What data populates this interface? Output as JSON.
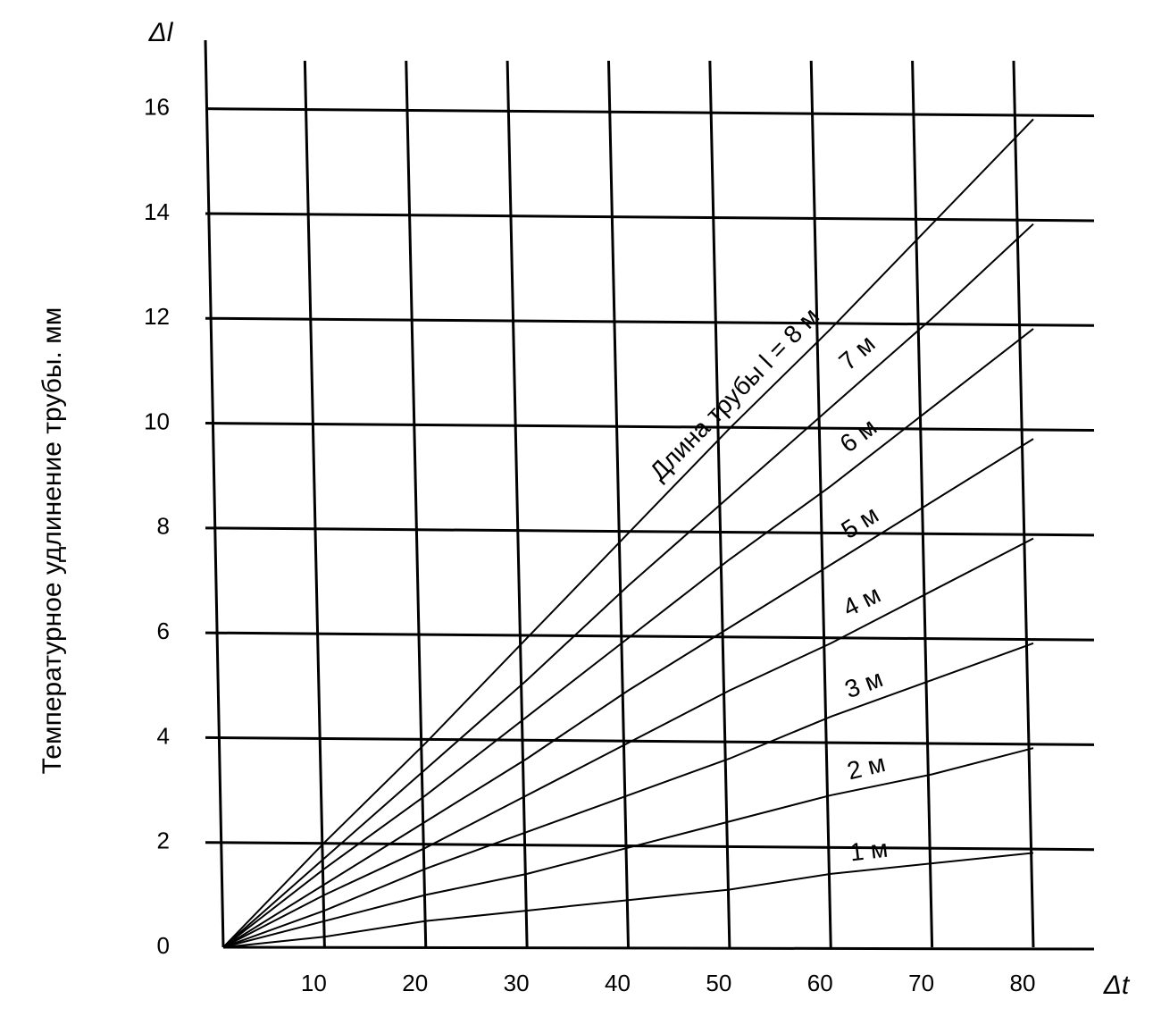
{
  "chart_data": {
    "type": "line",
    "y_label": "Температурное удлинение трубы. мм",
    "y_symbol": "Δl",
    "x_symbol": "Δt",
    "x": [
      0,
      10,
      20,
      30,
      40,
      50,
      60,
      70,
      80
    ],
    "series": [
      {
        "name": "Длина трубы l = 8 м",
        "color": "#000000",
        "values": [
          0,
          2,
          3.9,
          5.9,
          7.9,
          9.9,
          11.8,
          13.8,
          15.8
        ]
      },
      {
        "name": "7 м",
        "color": "#000000",
        "values": [
          0,
          1.7,
          3.4,
          5.1,
          6.9,
          8.6,
          10.3,
          12.0,
          13.8
        ]
      },
      {
        "name": "6 м",
        "color": "#000000",
        "values": [
          0,
          1.5,
          2.9,
          4.4,
          5.9,
          7.4,
          8.8,
          10.3,
          11.8
        ]
      },
      {
        "name": "5 м",
        "color": "#000000",
        "values": [
          0,
          1.2,
          2.4,
          3.6,
          4.9,
          6.1,
          7.3,
          8.5,
          9.7
        ]
      },
      {
        "name": "4 м",
        "color": "#000000",
        "values": [
          0,
          1.0,
          1.9,
          2.9,
          3.9,
          4.9,
          5.8,
          6.8,
          7.8
        ]
      },
      {
        "name": "3 м",
        "color": "#000000",
        "values": [
          0,
          0.7,
          1.5,
          2.2,
          2.9,
          3.6,
          4.4,
          5.1,
          5.8
        ]
      },
      {
        "name": "2 м",
        "color": "#000000",
        "values": [
          0,
          0.5,
          1.0,
          1.4,
          1.9,
          2.4,
          2.9,
          3.3,
          3.8
        ]
      },
      {
        "name": "1 м",
        "color": "#000000",
        "values": [
          0,
          0.2,
          0.5,
          0.7,
          0.9,
          1.1,
          1.4,
          1.6,
          1.8
        ]
      }
    ],
    "xlim": [
      0,
      86
    ],
    "ylim": [
      0,
      17
    ],
    "xticks": [
      10,
      20,
      30,
      40,
      50,
      60,
      70,
      80
    ],
    "yticks": [
      0,
      2,
      4,
      6,
      8,
      10,
      12,
      14,
      16
    ],
    "grid": true
  }
}
